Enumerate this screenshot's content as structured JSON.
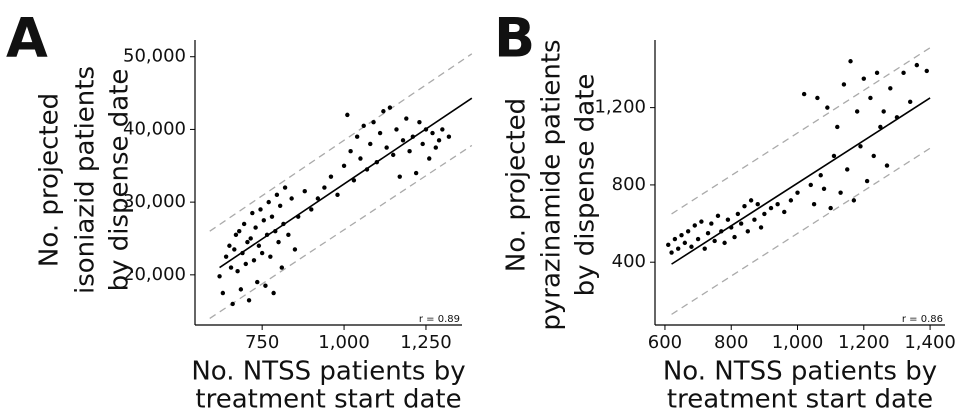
{
  "chart_data": [
    {
      "type": "scatter",
      "panel_label": "A",
      "y_label": [
        "No. projected",
        "isoniazid patients",
        "by dispense date"
      ],
      "x_label": [
        "No. NTSS patients by",
        "treatment start date"
      ],
      "annotation": "r = 0.89",
      "color": "#000000",
      "x": [
        620,
        630,
        640,
        650,
        655,
        660,
        665,
        670,
        675,
        680,
        685,
        690,
        695,
        700,
        705,
        710,
        715,
        720,
        725,
        730,
        735,
        740,
        745,
        750,
        755,
        760,
        765,
        770,
        775,
        780,
        785,
        790,
        795,
        800,
        805,
        810,
        815,
        820,
        830,
        840,
        850,
        860,
        880,
        900,
        920,
        940,
        960,
        980,
        1000,
        1010,
        1020,
        1030,
        1040,
        1050,
        1060,
        1070,
        1080,
        1090,
        1100,
        1110,
        1120,
        1130,
        1140,
        1150,
        1160,
        1170,
        1180,
        1190,
        1200,
        1210,
        1220,
        1230,
        1240,
        1250,
        1260,
        1270,
        1280,
        1290,
        1300,
        1320
      ],
      "y": [
        19800,
        17500,
        22500,
        24000,
        21000,
        16000,
        23500,
        25500,
        20500,
        26000,
        18000,
        23000,
        27000,
        21500,
        24500,
        16500,
        25000,
        28500,
        22000,
        26500,
        19000,
        24000,
        29000,
        23000,
        27500,
        18500,
        25500,
        30000,
        22500,
        28000,
        17500,
        26000,
        31000,
        24500,
        29500,
        21000,
        27000,
        32000,
        25500,
        30500,
        23500,
        28000,
        31500,
        29000,
        30500,
        32000,
        33500,
        31000,
        35000,
        42000,
        37000,
        33000,
        39000,
        36000,
        40500,
        34500,
        38000,
        41000,
        35500,
        39500,
        42500,
        37500,
        43000,
        36500,
        40000,
        33500,
        38500,
        41500,
        37000,
        39000,
        34000,
        41000,
        38000,
        40000,
        36000,
        39500,
        37500,
        38500,
        40000,
        39000
      ],
      "lines": [
        {
          "x": [
            620,
            1390
          ],
          "y": [
            21000,
            44300
          ],
          "color": "#000000",
          "dashed": false
        },
        {
          "x": [
            590,
            1390
          ],
          "y": [
            26000,
            50400
          ],
          "color": "#aaaaaa",
          "dashed": true
        },
        {
          "x": [
            590,
            1390
          ],
          "y": [
            14000,
            37800
          ],
          "color": "#aaaaaa",
          "dashed": true
        }
      ],
      "xlim": [
        545,
        1360
      ],
      "ylim": [
        13100,
        52300
      ],
      "xticks": [
        750,
        {
          "value": 1000,
          "label": "1,000"
        },
        {
          "value": 1250,
          "label": "1,250"
        }
      ],
      "yticks": [
        {
          "value": 20000,
          "label": "20,000"
        },
        {
          "value": 30000,
          "label": "30,000"
        },
        {
          "value": 40000,
          "label": "40,000"
        },
        {
          "value": 50000,
          "label": "50,000"
        }
      ]
    },
    {
      "type": "scatter",
      "panel_label": "B",
      "y_label": [
        "No. projected",
        "pyrazinamide patients",
        "by dispense date"
      ],
      "x_label": [
        "No. NTSS patients by",
        "treatment start date"
      ],
      "annotation": "r = 0.86",
      "color": "#000000",
      "x": [
        610,
        620,
        630,
        640,
        650,
        660,
        670,
        680,
        690,
        700,
        710,
        720,
        730,
        740,
        750,
        760,
        770,
        780,
        790,
        800,
        810,
        820,
        830,
        840,
        850,
        860,
        870,
        880,
        890,
        900,
        920,
        940,
        960,
        980,
        1000,
        1020,
        1040,
        1050,
        1060,
        1070,
        1080,
        1090,
        1100,
        1110,
        1120,
        1130,
        1140,
        1150,
        1160,
        1170,
        1180,
        1190,
        1200,
        1210,
        1220,
        1230,
        1240,
        1250,
        1260,
        1270,
        1280,
        1300,
        1320,
        1340,
        1360,
        1390
      ],
      "y": [
        490,
        450,
        520,
        470,
        540,
        500,
        560,
        480,
        590,
        520,
        610,
        470,
        550,
        600,
        510,
        640,
        560,
        500,
        620,
        580,
        530,
        650,
        600,
        690,
        560,
        720,
        620,
        700,
        580,
        650,
        680,
        700,
        660,
        720,
        760,
        1270,
        800,
        700,
        1250,
        850,
        780,
        1200,
        680,
        950,
        1100,
        760,
        1320,
        880,
        1440,
        720,
        1180,
        1000,
        1350,
        820,
        1250,
        950,
        1380,
        1100,
        1180,
        900,
        1300,
        1150,
        1380,
        1230,
        1420,
        1390
      ],
      "lines": [
        {
          "x": [
            620,
            1400
          ],
          "y": [
            390,
            1250
          ],
          "color": "#000000",
          "dashed": false
        },
        {
          "x": [
            620,
            1400
          ],
          "y": [
            650,
            1510
          ],
          "color": "#aaaaaa",
          "dashed": true
        },
        {
          "x": [
            620,
            1400
          ],
          "y": [
            130,
            990
          ],
          "color": "#aaaaaa",
          "dashed": true
        }
      ],
      "xlim": [
        570,
        1445
      ],
      "ylim": [
        75,
        1550
      ],
      "xticks": [
        600,
        800,
        {
          "value": 1000,
          "label": "1,000"
        },
        {
          "value": 1200,
          "label": "1,200"
        },
        {
          "value": 1400,
          "label": "1,400"
        }
      ],
      "yticks": [
        400,
        800,
        {
          "value": 1200,
          "label": "1,200"
        }
      ]
    }
  ]
}
